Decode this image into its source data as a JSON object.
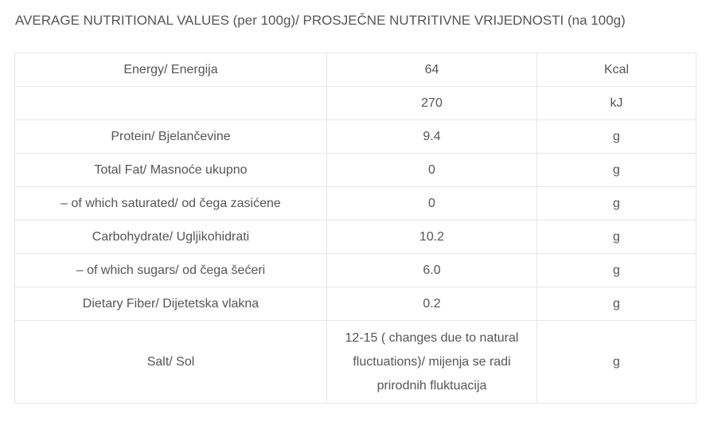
{
  "heading": "AVERAGE NUTRITIONAL VALUES (per 100g)/ PROSJEČNE NUTRITIVNE VRIJEDNOSTI (na 100g)",
  "rows": [
    {
      "name": "Energy/ Energija",
      "value": "64",
      "unit": "Kcal"
    },
    {
      "name": "",
      "value": "270",
      "unit": "kJ"
    },
    {
      "name": "Protein/ Bjelančevine",
      "value": "9.4",
      "unit": "g"
    },
    {
      "name": "Total Fat/ Masnoće ukupno",
      "value": "0",
      "unit": "g"
    },
    {
      "name": "– of which saturated/ od čega zasićene",
      "value": "0",
      "unit": "g"
    },
    {
      "name": "Carbohydrate/ Ugljikohidrati",
      "value": "10.2",
      "unit": "g"
    },
    {
      "name": "– of which sugars/ od čega šećeri",
      "value": "6.0",
      "unit": "g"
    },
    {
      "name": "Dietary Fiber/ Dijetetska vlakna",
      "value": "0.2",
      "unit": "g"
    },
    {
      "name": "Salt/ Sol",
      "value": "12-15 ( changes due to natural fluctuations)/ mijenja se radi prirodnih fluktuacija",
      "unit": "g"
    }
  ]
}
